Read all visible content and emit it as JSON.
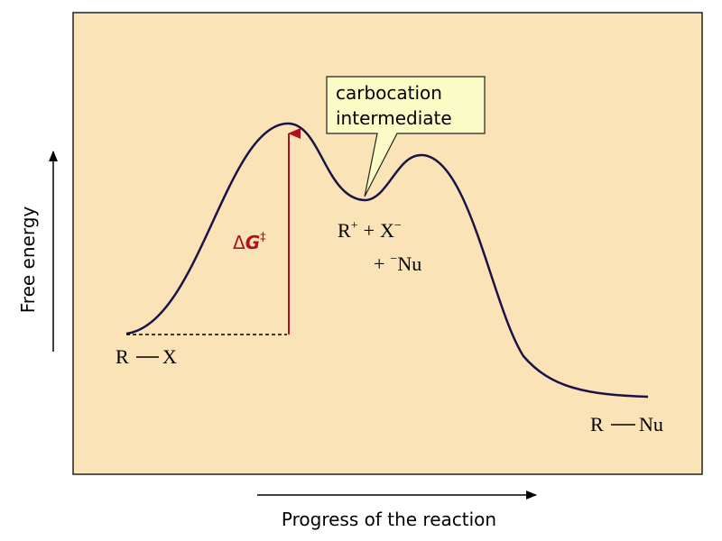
{
  "axes": {
    "y_label": "Free energy",
    "x_label": "Progress of the reaction"
  },
  "labels": {
    "reactant": {
      "r": "R",
      "x": "X"
    },
    "intermediate": {
      "r": "R",
      "r_charge": "+",
      "plus1": "+",
      "x": "X",
      "x_charge": "−",
      "plus2": "+",
      "nu_charge": "−",
      "nu": "Nu"
    },
    "product": {
      "r": "R",
      "nu": "Nu"
    }
  },
  "callout": {
    "line1": "carbocation",
    "line2": "intermediate"
  },
  "activation": {
    "delta": "Δ",
    "g": "G",
    "dagger": "‡"
  },
  "colors": {
    "panel_fill": "#fbe3b8",
    "curve": "#1a1446",
    "arrow": "#b01020",
    "callout_fill": "#fbfbc6"
  }
}
